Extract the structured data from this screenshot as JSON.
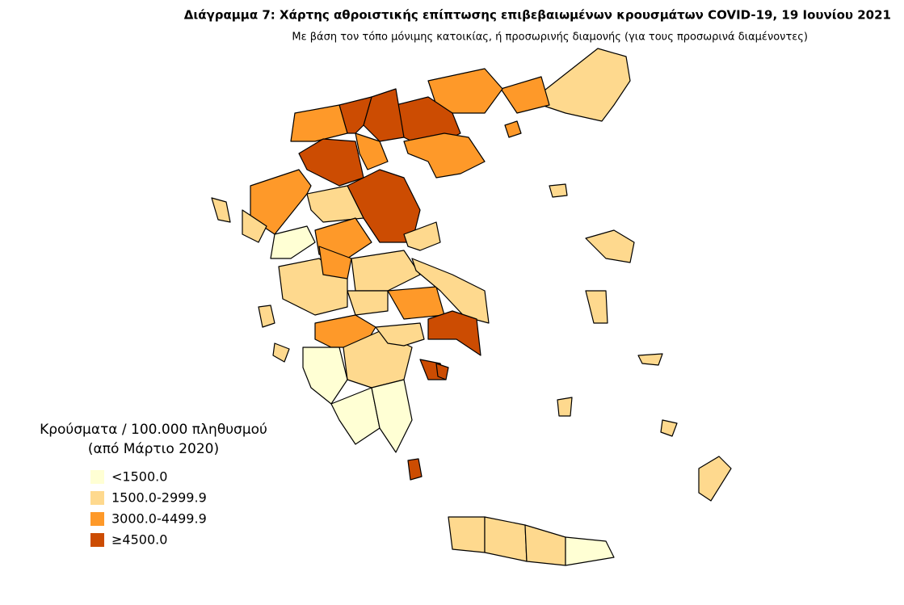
{
  "header": {
    "title": "Διάγραμμα 7: Χάρτης αθροιστικής επίπτωσης επιβεβαιωμένων κρουσμάτων COVID-19, 19 Ιουνίου 2021",
    "subtitle": "Με βάση τον τόπο μόνιμης κατοικίας, ή προσωρινής διαμονής (για τους προσωρινά διαμένοντες)"
  },
  "legend": {
    "title": [
      "Κρούσματα / 100.000 πληθυσμού",
      "(από Μάρτιο 2020)"
    ],
    "items": [
      {
        "label": "<1500.0",
        "color": "#ffffd4"
      },
      {
        "label": "1500.0-2999.9",
        "color": "#fed98e"
      },
      {
        "label": "3000.0-4499.9",
        "color": "#fe9929"
      },
      {
        "label": "≥4500.0",
        "color": "#cc4c02"
      }
    ]
  }
}
